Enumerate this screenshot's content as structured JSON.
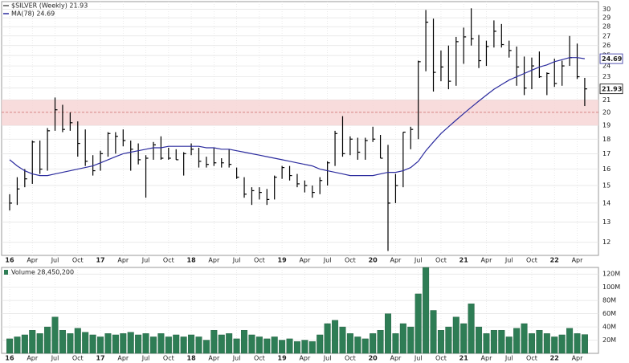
{
  "chart_data": [
    {
      "type": "ohlc",
      "categories": [
        "2016-01",
        "2016-02",
        "2016-03",
        "2016-04",
        "2016-05",
        "2016-06",
        "2016-07",
        "2016-08",
        "2016-09",
        "2016-10",
        "2016-11",
        "2016-12",
        "2017-01",
        "2017-02",
        "2017-03",
        "2017-04",
        "2017-05",
        "2017-06",
        "2017-07",
        "2017-08",
        "2017-09",
        "2017-10",
        "2017-11",
        "2017-12",
        "2018-01",
        "2018-02",
        "2018-03",
        "2018-04",
        "2018-05",
        "2018-06",
        "2018-07",
        "2018-08",
        "2018-09",
        "2018-10",
        "2018-11",
        "2018-12",
        "2019-01",
        "2019-02",
        "2019-03",
        "2019-04",
        "2019-05",
        "2019-06",
        "2019-07",
        "2019-08",
        "2019-09",
        "2019-10",
        "2019-11",
        "2019-12",
        "2020-01",
        "2020-02",
        "2020-03",
        "2020-04",
        "2020-05",
        "2020-06",
        "2020-07",
        "2020-08",
        "2020-09",
        "2020-10",
        "2020-11",
        "2020-12",
        "2021-01",
        "2021-02",
        "2021-03",
        "2021-04",
        "2021-05",
        "2021-06",
        "2021-07",
        "2021-08",
        "2021-09",
        "2021-10",
        "2021-11",
        "2021-12",
        "2022-01",
        "2022-02",
        "2022-03",
        "2022-04",
        "2022-05"
      ],
      "xticks": [
        {
          "value": "2016-01",
          "label": "16"
        },
        {
          "value": "2016-04",
          "label": "Apr"
        },
        {
          "value": "2016-07",
          "label": "Jul"
        },
        {
          "value": "2016-10",
          "label": "Oct"
        },
        {
          "value": "2017-01",
          "label": "17"
        },
        {
          "value": "2017-04",
          "label": "Apr"
        },
        {
          "value": "2017-07",
          "label": "Jul"
        },
        {
          "value": "2017-10",
          "label": "Oct"
        },
        {
          "value": "2018-01",
          "label": "18"
        },
        {
          "value": "2018-04",
          "label": "Apr"
        },
        {
          "value": "2018-07",
          "label": "Jul"
        },
        {
          "value": "2018-10",
          "label": "Oct"
        },
        {
          "value": "2019-01",
          "label": "19"
        },
        {
          "value": "2019-04",
          "label": "Apr"
        },
        {
          "value": "2019-07",
          "label": "Jul"
        },
        {
          "value": "2019-10",
          "label": "Oct"
        },
        {
          "value": "2020-01",
          "label": "20"
        },
        {
          "value": "2020-04",
          "label": "Apr"
        },
        {
          "value": "2020-07",
          "label": "Jul"
        },
        {
          "value": "2020-10",
          "label": "Oct"
        },
        {
          "value": "2021-01",
          "label": "21"
        },
        {
          "value": "2021-04",
          "label": "Apr"
        },
        {
          "value": "2021-07",
          "label": "Jul"
        },
        {
          "value": "2021-10",
          "label": "Oct"
        },
        {
          "value": "2022-01",
          "label": "22"
        },
        {
          "value": "2022-04",
          "label": "Apr"
        }
      ],
      "ylim": [
        11.4,
        30.9
      ],
      "log_scale": true,
      "yticks": [
        12,
        13,
        14,
        15,
        16,
        17,
        18,
        19,
        20,
        21,
        22,
        23,
        24,
        25,
        26,
        27,
        28,
        29,
        30
      ],
      "grid": true,
      "zone": [
        19,
        21
      ],
      "zone_color": "#f6d3d3",
      "ref_line": 20,
      "series": [
        {
          "name": "$SILVER (Weekly) 21.93",
          "color": "#000000",
          "high": [
            14.5,
            15.5,
            16,
            17.9,
            17.9,
            18.8,
            21.2,
            20.6,
            20.0,
            19.3,
            18.7,
            16.9,
            17.2,
            18.5,
            18.5,
            18.7,
            17.9,
            17.7,
            16.9,
            17.8,
            18.2,
            17.4,
            17.3,
            17.1,
            17.7,
            17.4,
            16.8,
            17.4,
            16.7,
            17.3,
            16.1,
            15.5,
            14.9,
            14.9,
            14.8,
            15.6,
            16.2,
            16.2,
            15.7,
            15.3,
            15.0,
            15.5,
            16.5,
            18.6,
            19.7,
            18.2,
            18.1,
            18.1,
            18.9,
            18.3,
            17.6,
            15.7,
            18.5,
            18.9,
            24.5,
            29.9,
            28.9,
            25.5,
            26.0,
            26.9,
            27.9,
            30.1,
            27.1,
            26.5,
            28.7,
            28.3,
            26.5,
            25.9,
            24.9,
            24.8,
            25.4,
            23.4,
            24.7,
            24.5,
            27.0,
            26.2,
            22.9
          ],
          "low": [
            13.6,
            13.9,
            14.9,
            15.1,
            15.7,
            15.9,
            18.6,
            18.5,
            18.6,
            16.8,
            16.2,
            15.6,
            15.9,
            16.8,
            17.0,
            17.5,
            15.9,
            16.3,
            14.3,
            16.6,
            16.6,
            16.6,
            16.6,
            15.6,
            16.9,
            16.1,
            16.1,
            16.2,
            16.1,
            16.1,
            15.4,
            14.3,
            13.9,
            14.2,
            13.9,
            14.2,
            15.4,
            15.3,
            14.9,
            14.6,
            14.3,
            14.5,
            15.0,
            16.2,
            16.8,
            16.9,
            16.6,
            16.6,
            17.8,
            16.7,
            11.6,
            14.0,
            14.9,
            17.3,
            18.0,
            23.5,
            21.7,
            22.6,
            21.9,
            22.2,
            24.2,
            26.0,
            23.8,
            24.0,
            25.8,
            25.8,
            24.8,
            22.2,
            21.4,
            21.9,
            22.9,
            21.4,
            22.1,
            22.2,
            24.0,
            22.8,
            20.5
          ],
          "close": [
            14.0,
            14.8,
            15.4,
            17.8,
            16.0,
            18.6,
            20.2,
            18.7,
            19.2,
            17.7,
            16.5,
            15.9,
            17.0,
            18.4,
            18.2,
            17.9,
            17.3,
            16.6,
            16.7,
            17.6,
            16.7,
            16.7,
            16.6,
            17.0,
            17.3,
            16.5,
            16.3,
            16.4,
            16.4,
            16.3,
            15.5,
            14.5,
            14.7,
            14.6,
            14.2,
            15.5,
            16.1,
            15.6,
            15.1,
            15.0,
            14.6,
            15.3,
            16.4,
            18.4,
            17.0,
            18.0,
            17.1,
            17.9,
            18.0,
            16.7,
            14.0,
            15.0,
            18.5,
            18.7,
            24.4,
            28.5,
            23.4,
            23.9,
            22.6,
            26.4,
            26.9,
            26.7,
            24.5,
            25.9,
            27.5,
            26.1,
            25.5,
            23.9,
            22.0,
            24.0,
            23.0,
            23.3,
            22.4,
            24.0,
            24.8,
            23.0,
            21.93
          ]
        },
        {
          "name": "MA(78) 24.69",
          "color": "#2b2b9e",
          "values": [
            16.6,
            16.2,
            15.9,
            15.7,
            15.6,
            15.6,
            15.7,
            15.8,
            15.9,
            16.0,
            16.1,
            16.2,
            16.4,
            16.6,
            16.8,
            17.0,
            17.1,
            17.2,
            17.3,
            17.4,
            17.4,
            17.5,
            17.5,
            17.5,
            17.5,
            17.5,
            17.4,
            17.4,
            17.3,
            17.3,
            17.2,
            17.1,
            17.0,
            16.9,
            16.8,
            16.7,
            16.6,
            16.5,
            16.4,
            16.3,
            16.2,
            16.0,
            15.9,
            15.8,
            15.7,
            15.6,
            15.6,
            15.6,
            15.6,
            15.7,
            15.8,
            15.8,
            15.9,
            16.1,
            16.5,
            17.2,
            17.8,
            18.4,
            18.9,
            19.4,
            19.9,
            20.4,
            20.9,
            21.4,
            21.9,
            22.3,
            22.7,
            23.0,
            23.3,
            23.6,
            23.9,
            24.1,
            24.4,
            24.6,
            24.8,
            24.8,
            24.69
          ]
        }
      ]
    },
    {
      "type": "bar",
      "title": "Volume 28,450,200",
      "categories": [
        "2016-01",
        "2016-02",
        "2016-03",
        "2016-04",
        "2016-05",
        "2016-06",
        "2016-07",
        "2016-08",
        "2016-09",
        "2016-10",
        "2016-11",
        "2016-12",
        "2017-01",
        "2017-02",
        "2017-03",
        "2017-04",
        "2017-05",
        "2017-06",
        "2017-07",
        "2017-08",
        "2017-09",
        "2017-10",
        "2017-11",
        "2017-12",
        "2018-01",
        "2018-02",
        "2018-03",
        "2018-04",
        "2018-05",
        "2018-06",
        "2018-07",
        "2018-08",
        "2018-09",
        "2018-10",
        "2018-11",
        "2018-12",
        "2019-01",
        "2019-02",
        "2019-03",
        "2019-04",
        "2019-05",
        "2019-06",
        "2019-07",
        "2019-08",
        "2019-09",
        "2019-10",
        "2019-11",
        "2019-12",
        "2020-01",
        "2020-02",
        "2020-03",
        "2020-04",
        "2020-05",
        "2020-06",
        "2020-07",
        "2020-08",
        "2020-09",
        "2020-10",
        "2020-11",
        "2020-12",
        "2021-01",
        "2021-02",
        "2021-03",
        "2021-04",
        "2021-05",
        "2021-06",
        "2021-07",
        "2021-08",
        "2021-09",
        "2021-10",
        "2021-11",
        "2021-12",
        "2022-01",
        "2022-02",
        "2022-03",
        "2022-04",
        "2022-05"
      ],
      "xticks": [
        {
          "value": "2016-01",
          "label": "16"
        },
        {
          "value": "2016-04",
          "label": "Apr"
        },
        {
          "value": "2016-07",
          "label": "Jul"
        },
        {
          "value": "2016-10",
          "label": "Oct"
        },
        {
          "value": "2017-01",
          "label": "17"
        },
        {
          "value": "2017-04",
          "label": "Apr"
        },
        {
          "value": "2017-07",
          "label": "Jul"
        },
        {
          "value": "2017-10",
          "label": "Oct"
        },
        {
          "value": "2018-01",
          "label": "18"
        },
        {
          "value": "2018-04",
          "label": "Apr"
        },
        {
          "value": "2018-07",
          "label": "Jul"
        },
        {
          "value": "2018-10",
          "label": "Oct"
        },
        {
          "value": "2019-01",
          "label": "19"
        },
        {
          "value": "2019-04",
          "label": "Apr"
        },
        {
          "value": "2019-07",
          "label": "Jul"
        },
        {
          "value": "2019-10",
          "label": "Oct"
        },
        {
          "value": "2020-01",
          "label": "20"
        },
        {
          "value": "2020-04",
          "label": "Apr"
        },
        {
          "value": "2020-07",
          "label": "Jul"
        },
        {
          "value": "2020-10",
          "label": "Oct"
        },
        {
          "value": "2021-01",
          "label": "21"
        },
        {
          "value": "2021-04",
          "label": "Apr"
        },
        {
          "value": "2021-07",
          "label": "Jul"
        },
        {
          "value": "2021-10",
          "label": "Oct"
        },
        {
          "value": "2022-01",
          "label": "22"
        },
        {
          "value": "2022-04",
          "label": "Apr"
        }
      ],
      "values": [
        22,
        25,
        28,
        35,
        30,
        40,
        55,
        35,
        30,
        38,
        32,
        28,
        25,
        30,
        28,
        30,
        32,
        28,
        30,
        25,
        30,
        25,
        28,
        25,
        28,
        25,
        20,
        35,
        28,
        30,
        22,
        35,
        28,
        25,
        22,
        25,
        20,
        22,
        18,
        20,
        18,
        28,
        45,
        50,
        40,
        30,
        25,
        22,
        30,
        35,
        60,
        30,
        45,
        40,
        90,
        130,
        65,
        35,
        40,
        55,
        45,
        75,
        40,
        30,
        35,
        35,
        25,
        38,
        45,
        30,
        35,
        30,
        25,
        28,
        38,
        30,
        28.4502
      ],
      "color": "#2e7d55",
      "ylim": [
        0,
        130
      ],
      "yticks": [
        {
          "value": 20,
          "label": "20M"
        },
        {
          "value": 40,
          "label": "40M"
        },
        {
          "value": 60,
          "label": "60M"
        },
        {
          "value": 80,
          "label": "80M"
        },
        {
          "value": 100,
          "label": "100M"
        },
        {
          "value": 120,
          "label": "120M"
        }
      ],
      "grid": true
    }
  ]
}
